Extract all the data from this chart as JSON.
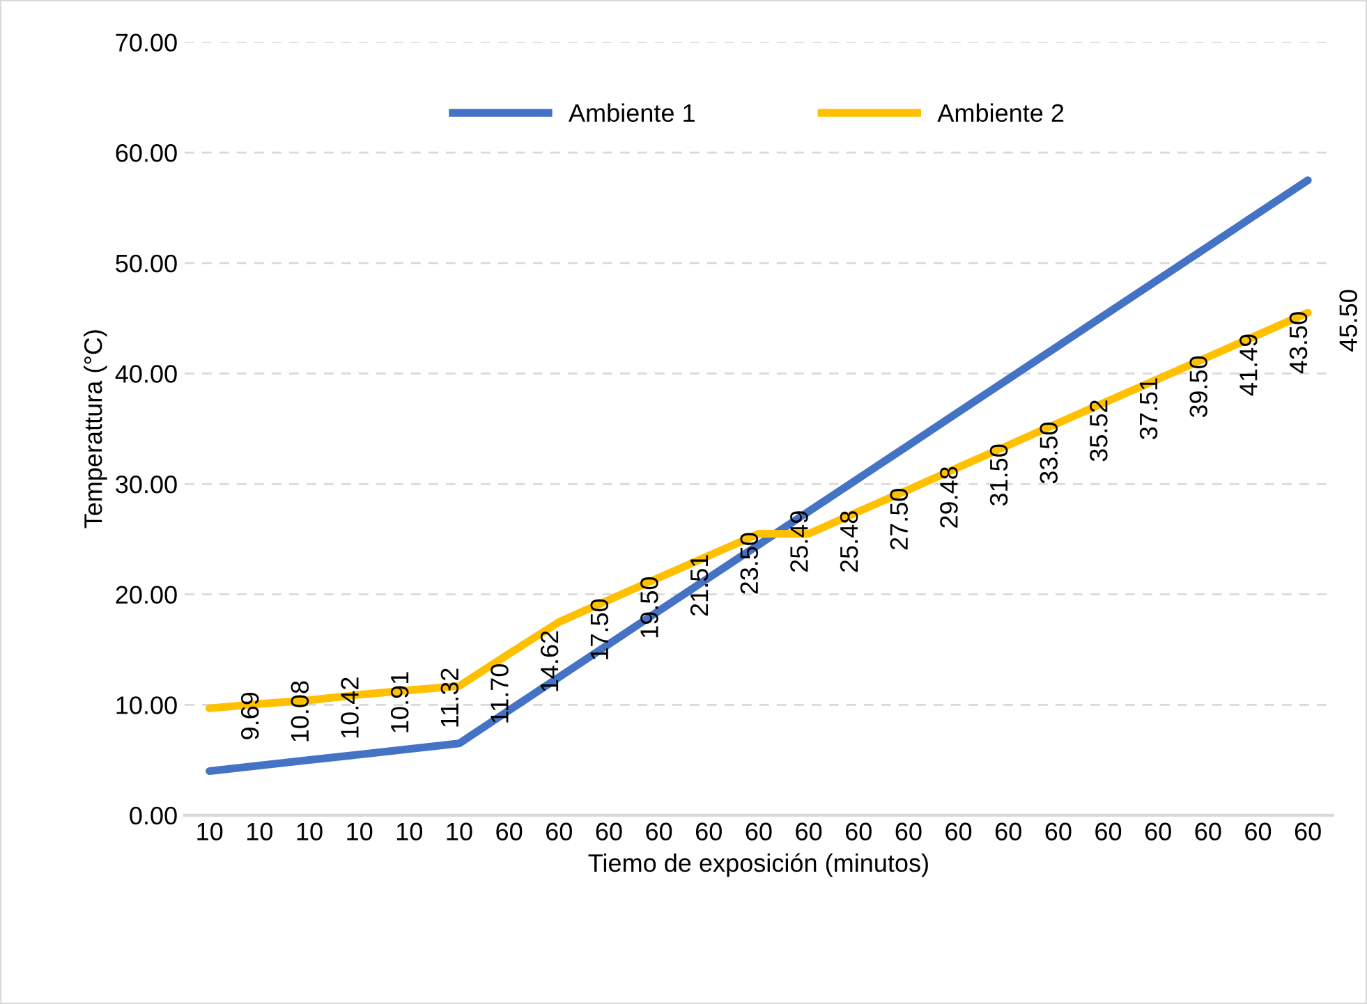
{
  "chart_data": {
    "type": "line",
    "xlabel": "Tiemo de exposición (minutos)",
    "ylabel": "Temperattura (°C)",
    "categories": [
      "10",
      "10",
      "10",
      "10",
      "10",
      "10",
      "60",
      "60",
      "60",
      "60",
      "60",
      "60",
      "60",
      "60",
      "60",
      "60",
      "60",
      "60",
      "60",
      "60",
      "60",
      "60",
      "60"
    ],
    "series": [
      {
        "name": "Ambiente 1",
        "color": "#4472c4",
        "values": [
          4.0,
          4.5,
          5.0,
          5.5,
          6.0,
          6.5,
          9.5,
          12.5,
          15.5,
          18.5,
          21.5,
          24.5,
          27.5,
          30.5,
          33.5,
          36.5,
          39.5,
          42.5,
          45.5,
          48.5,
          51.5,
          54.5,
          57.5
        ]
      },
      {
        "name": "Ambiente 2",
        "color": "#ffc000",
        "values": [
          9.69,
          10.08,
          10.42,
          10.91,
          11.32,
          11.7,
          14.62,
          17.5,
          19.5,
          21.51,
          23.5,
          25.49,
          25.48,
          27.5,
          29.48,
          31.5,
          33.5,
          35.52,
          37.51,
          39.5,
          41.49,
          43.5,
          45.5
        ],
        "value_labels": [
          "9.69",
          "10.08",
          "10.42",
          "10.91",
          "11.32",
          "11.70",
          "14.62",
          "17.50",
          "19.50",
          "21.51",
          "23.50",
          "25.49",
          "25.48",
          "27.50",
          "29.48",
          "31.50",
          "33.50",
          "35.52",
          "37.51",
          "39.50",
          "41.49",
          "43.50",
          "45.50"
        ]
      }
    ],
    "ylim": [
      0,
      70
    ],
    "yticks": [
      {
        "value": 0,
        "label": "0.00"
      },
      {
        "value": 10,
        "label": "10.00"
      },
      {
        "value": 20,
        "label": "20.00"
      },
      {
        "value": 30,
        "label": "30.00"
      },
      {
        "value": 40,
        "label": "40.00"
      },
      {
        "value": 50,
        "label": "50.00"
      },
      {
        "value": 60,
        "label": "60.00"
      },
      {
        "value": 70,
        "label": "70.00"
      }
    ],
    "grid": "y",
    "legend": "top",
    "marker": "none",
    "line_style": "solid"
  }
}
